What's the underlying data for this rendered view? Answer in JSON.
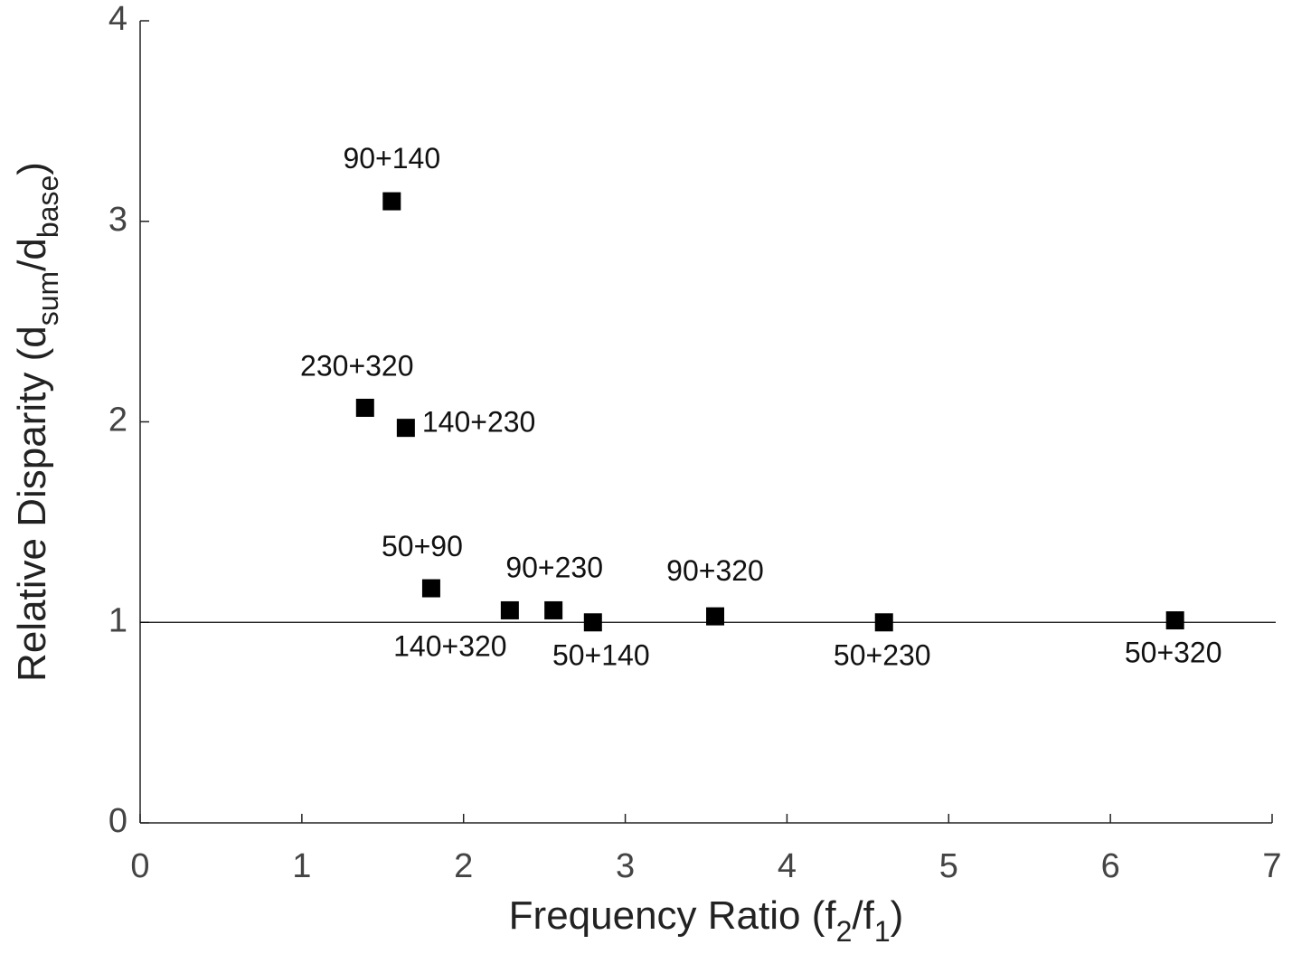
{
  "chart_data": {
    "type": "scatter",
    "xlabel_parts": [
      {
        "text": "Frequency Ratio (f"
      },
      {
        "text": "2",
        "sub": true
      },
      {
        "text": "/f"
      },
      {
        "text": "1",
        "sub": true
      },
      {
        "text": ")"
      }
    ],
    "ylabel_parts": [
      {
        "text": "Relative Disparity (d"
      },
      {
        "text": "sum",
        "sub": true
      },
      {
        "text": "/d"
      },
      {
        "text": "base",
        "sub": true
      },
      {
        "text": ")"
      }
    ],
    "x": [
      1.556,
      1.391,
      1.643,
      1.8,
      2.286,
      2.556,
      2.8,
      3.556,
      4.6,
      6.4
    ],
    "values": [
      3.1,
      2.07,
      1.97,
      1.17,
      1.06,
      1.06,
      1.0,
      1.03,
      1.0,
      1.01
    ],
    "point_labels": [
      "90+140",
      "230+320",
      "140+230",
      "50+90",
      "140+320",
      "90+230",
      "50+140",
      "90+320",
      "50+230",
      "50+320"
    ],
    "color": "#000000",
    "reference_line": 1,
    "xlim": [
      0,
      7
    ],
    "xticks": [
      0,
      1,
      2,
      3,
      4,
      5,
      6,
      7
    ],
    "ylim": [
      0,
      4
    ],
    "yticks": [
      0,
      1,
      2,
      3,
      4
    ]
  }
}
